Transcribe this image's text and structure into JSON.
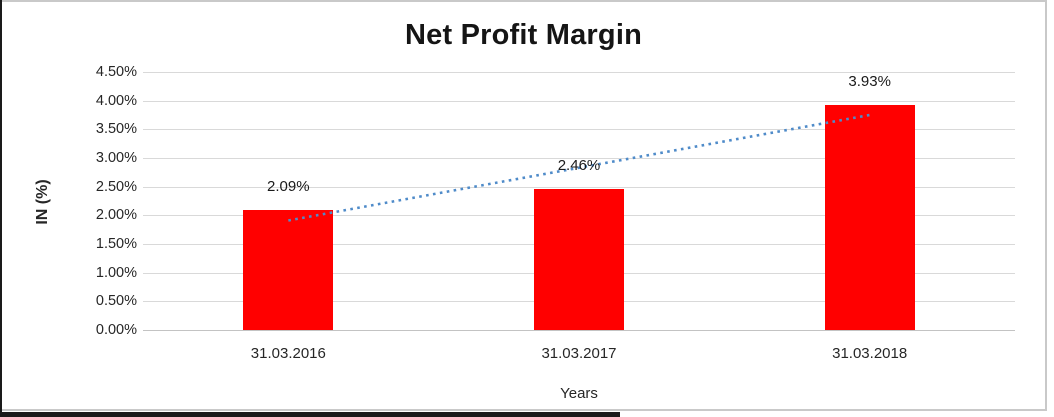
{
  "chart_data": {
    "type": "bar",
    "title": "Net Profit Margin",
    "xlabel": "Years",
    "ylabel": "IN (%)",
    "categories": [
      "31.03.2016",
      "31.03.2017",
      "31.03.2018"
    ],
    "values": [
      2.09,
      2.46,
      3.93
    ],
    "data_labels": [
      "2.09%",
      "2.46%",
      "3.93%"
    ],
    "ylim": [
      0,
      4.5
    ],
    "ytick_step": 0.5,
    "ytick_labels": [
      "0.00%",
      "0.50%",
      "1.00%",
      "1.50%",
      "2.00%",
      "2.50%",
      "3.00%",
      "3.50%",
      "4.00%",
      "4.50%"
    ],
    "grid": true,
    "legend": "none",
    "bar_color": "#ff0000",
    "trendline": {
      "type": "linear",
      "style": "dotted",
      "color": "#4f8bc9",
      "start_value": 1.91,
      "end_value": 3.75
    }
  }
}
